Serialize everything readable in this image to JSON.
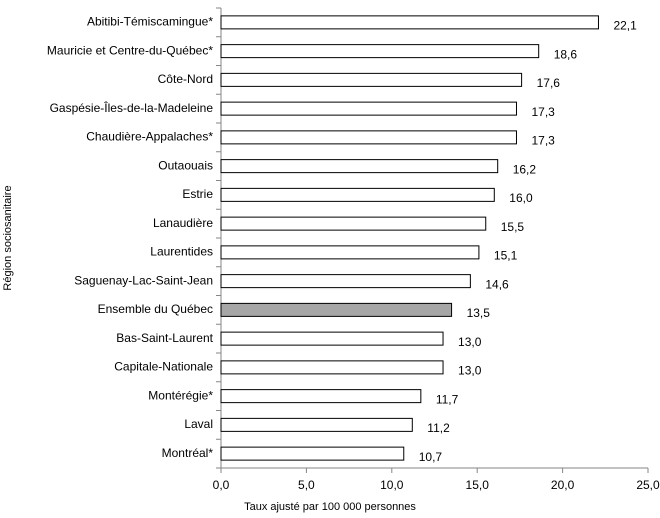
{
  "chart_data": {
    "type": "bar",
    "orientation": "horizontal",
    "x_label": "Taux ajusté par 100 000 personnes",
    "y_label": "Région sociosanitaire",
    "categories": [
      "Abitibi-Témiscamingue*",
      "Mauricie et Centre-du-Québec*",
      "Côte-Nord",
      "Gaspésie-Îles-de-la-Madeleine",
      "Chaudière-Appalaches*",
      "Outaouais",
      "Estrie",
      "Lanaudière",
      "Laurentides",
      "Saguenay-Lac-Saint-Jean",
      "Ensemble du Québec",
      "Bas-Saint-Laurent",
      "Capitale-Nationale",
      "Montérégie*",
      "Laval",
      "Montréal*"
    ],
    "values": [
      22.1,
      18.6,
      17.6,
      17.3,
      17.3,
      16.2,
      16.0,
      15.5,
      15.1,
      14.6,
      13.5,
      13.0,
      13.0,
      11.7,
      11.2,
      10.7
    ],
    "value_labels": [
      "22,1",
      "18,6",
      "17,6",
      "17,3",
      "17,3",
      "16,2",
      "16,0",
      "15,5",
      "15,1",
      "14,6",
      "13,5",
      "13,0",
      "13,0",
      "11,7",
      "11,2",
      "10,7"
    ],
    "colors": [
      "#ffffff",
      "#ffffff",
      "#ffffff",
      "#ffffff",
      "#ffffff",
      "#ffffff",
      "#ffffff",
      "#ffffff",
      "#ffffff",
      "#ffffff",
      "#a6a6a6",
      "#ffffff",
      "#ffffff",
      "#ffffff",
      "#ffffff",
      "#ffffff"
    ],
    "xlim": [
      0,
      25
    ],
    "xticks": [
      {
        "value": 0,
        "label": "0,0"
      },
      {
        "value": 5,
        "label": "5,0"
      },
      {
        "value": 10,
        "label": "10,0"
      },
      {
        "value": 15,
        "label": "15,0"
      },
      {
        "value": 20,
        "label": "20,0"
      },
      {
        "value": 25,
        "label": "25,0"
      }
    ],
    "grid": false
  }
}
